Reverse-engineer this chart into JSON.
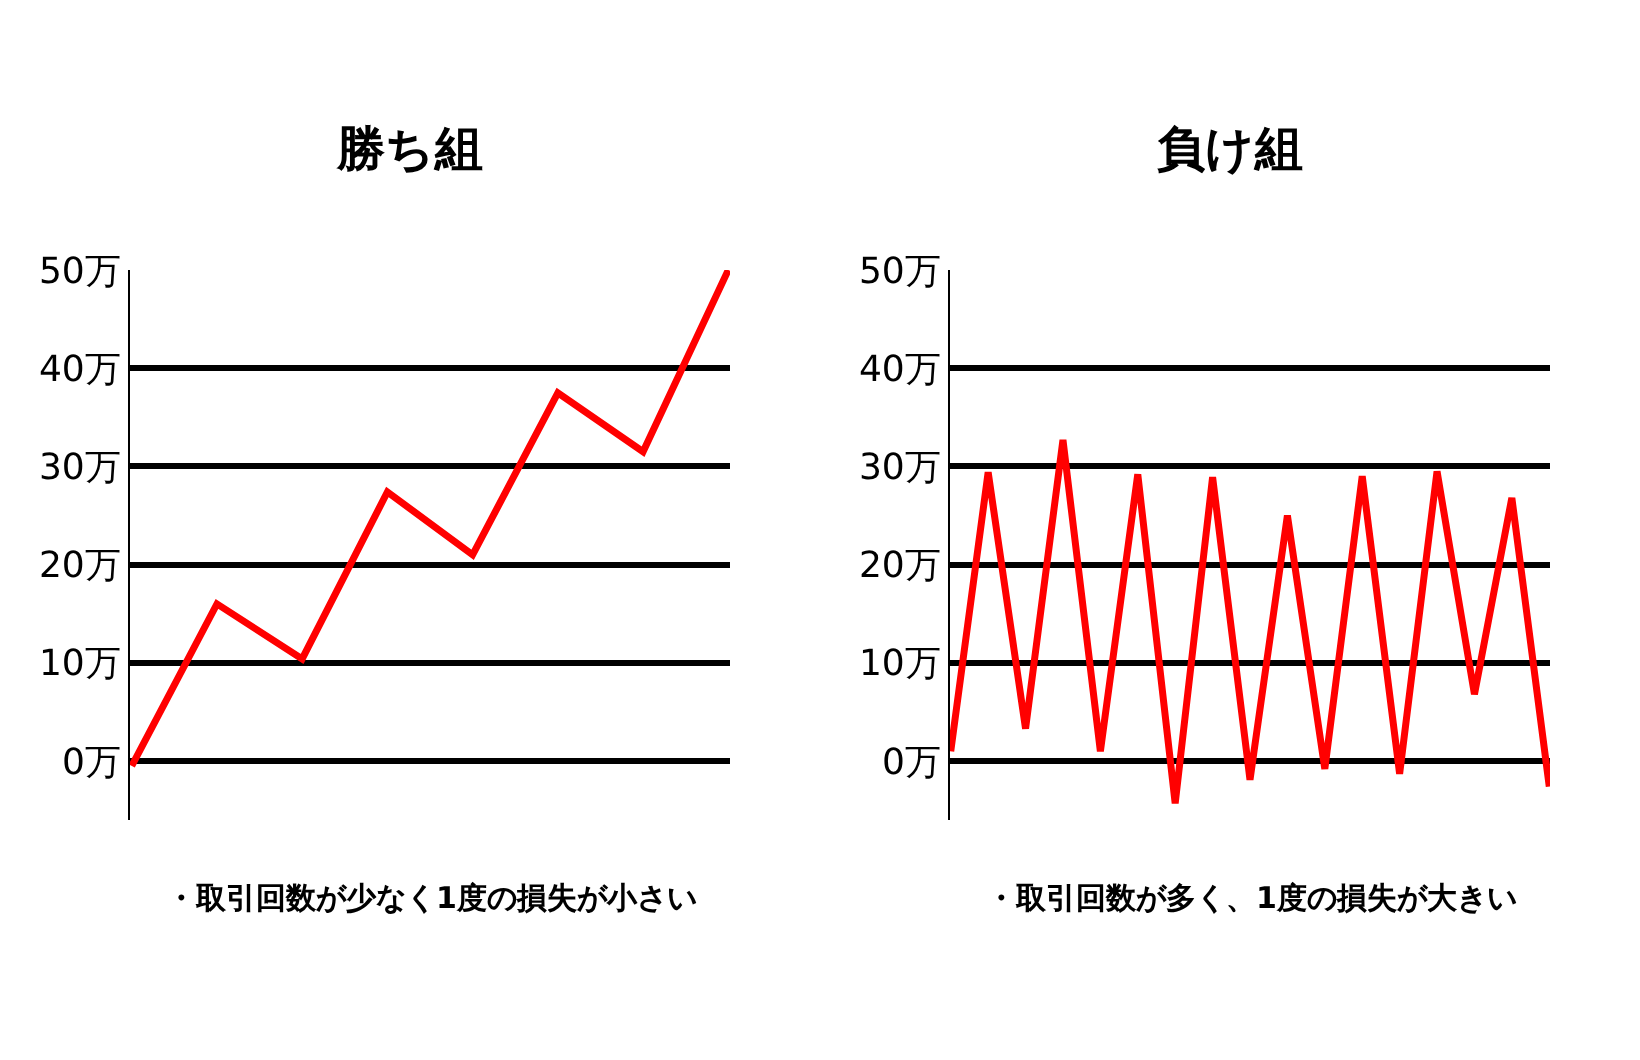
{
  "chart_data": [
    {
      "type": "line",
      "title": "勝ち組",
      "categories": [
        null,
        null,
        null,
        null,
        null,
        null,
        null,
        null
      ],
      "series": [
        {
          "color": "#ff0000",
          "values": [
            -0.5,
            16,
            10.4,
            27.4,
            21,
            37.5,
            31.5,
            50
          ]
        }
      ],
      "ylim": [
        -6,
        50
      ],
      "yticks": [
        {
          "value": 0,
          "label": "0万"
        },
        {
          "value": 10,
          "label": "10万"
        },
        {
          "value": 20,
          "label": "20万"
        },
        {
          "value": 30,
          "label": "30万"
        },
        {
          "value": 40,
          "label": "40万"
        },
        {
          "value": 50,
          "label": "50万"
        }
      ],
      "grid": "y",
      "marker": "none",
      "line_style": "solid",
      "tick_labels": "y",
      "annotations": [
        "・取引回数が少なく1度の損失が小さい"
      ]
    },
    {
      "type": "line",
      "title": "負け組",
      "categories": [
        null,
        null,
        null,
        null,
        null,
        null,
        null,
        null,
        null,
        null,
        null,
        null,
        null,
        null,
        null,
        null,
        null
      ],
      "series": [
        {
          "color": "#ff0000",
          "values": [
            1,
            29.4,
            3.3,
            32.7,
            1,
            29.2,
            -4.3,
            28.9,
            -1.9,
            25,
            -0.8,
            29,
            -1.3,
            29.5,
            6.8,
            26.8,
            -2.6
          ]
        }
      ],
      "ylim": [
        -6,
        50
      ],
      "yticks": [
        {
          "value": 0,
          "label": "0万"
        },
        {
          "value": 10,
          "label": "10万"
        },
        {
          "value": 20,
          "label": "20万"
        },
        {
          "value": 30,
          "label": "30万"
        },
        {
          "value": 40,
          "label": "40万"
        },
        {
          "value": 50,
          "label": "50万"
        }
      ],
      "grid": "y",
      "marker": "none",
      "line_style": "solid",
      "tick_labels": "y",
      "annotations": [
        "・取引回数が多く、1度の損失が大きい"
      ]
    }
  ]
}
